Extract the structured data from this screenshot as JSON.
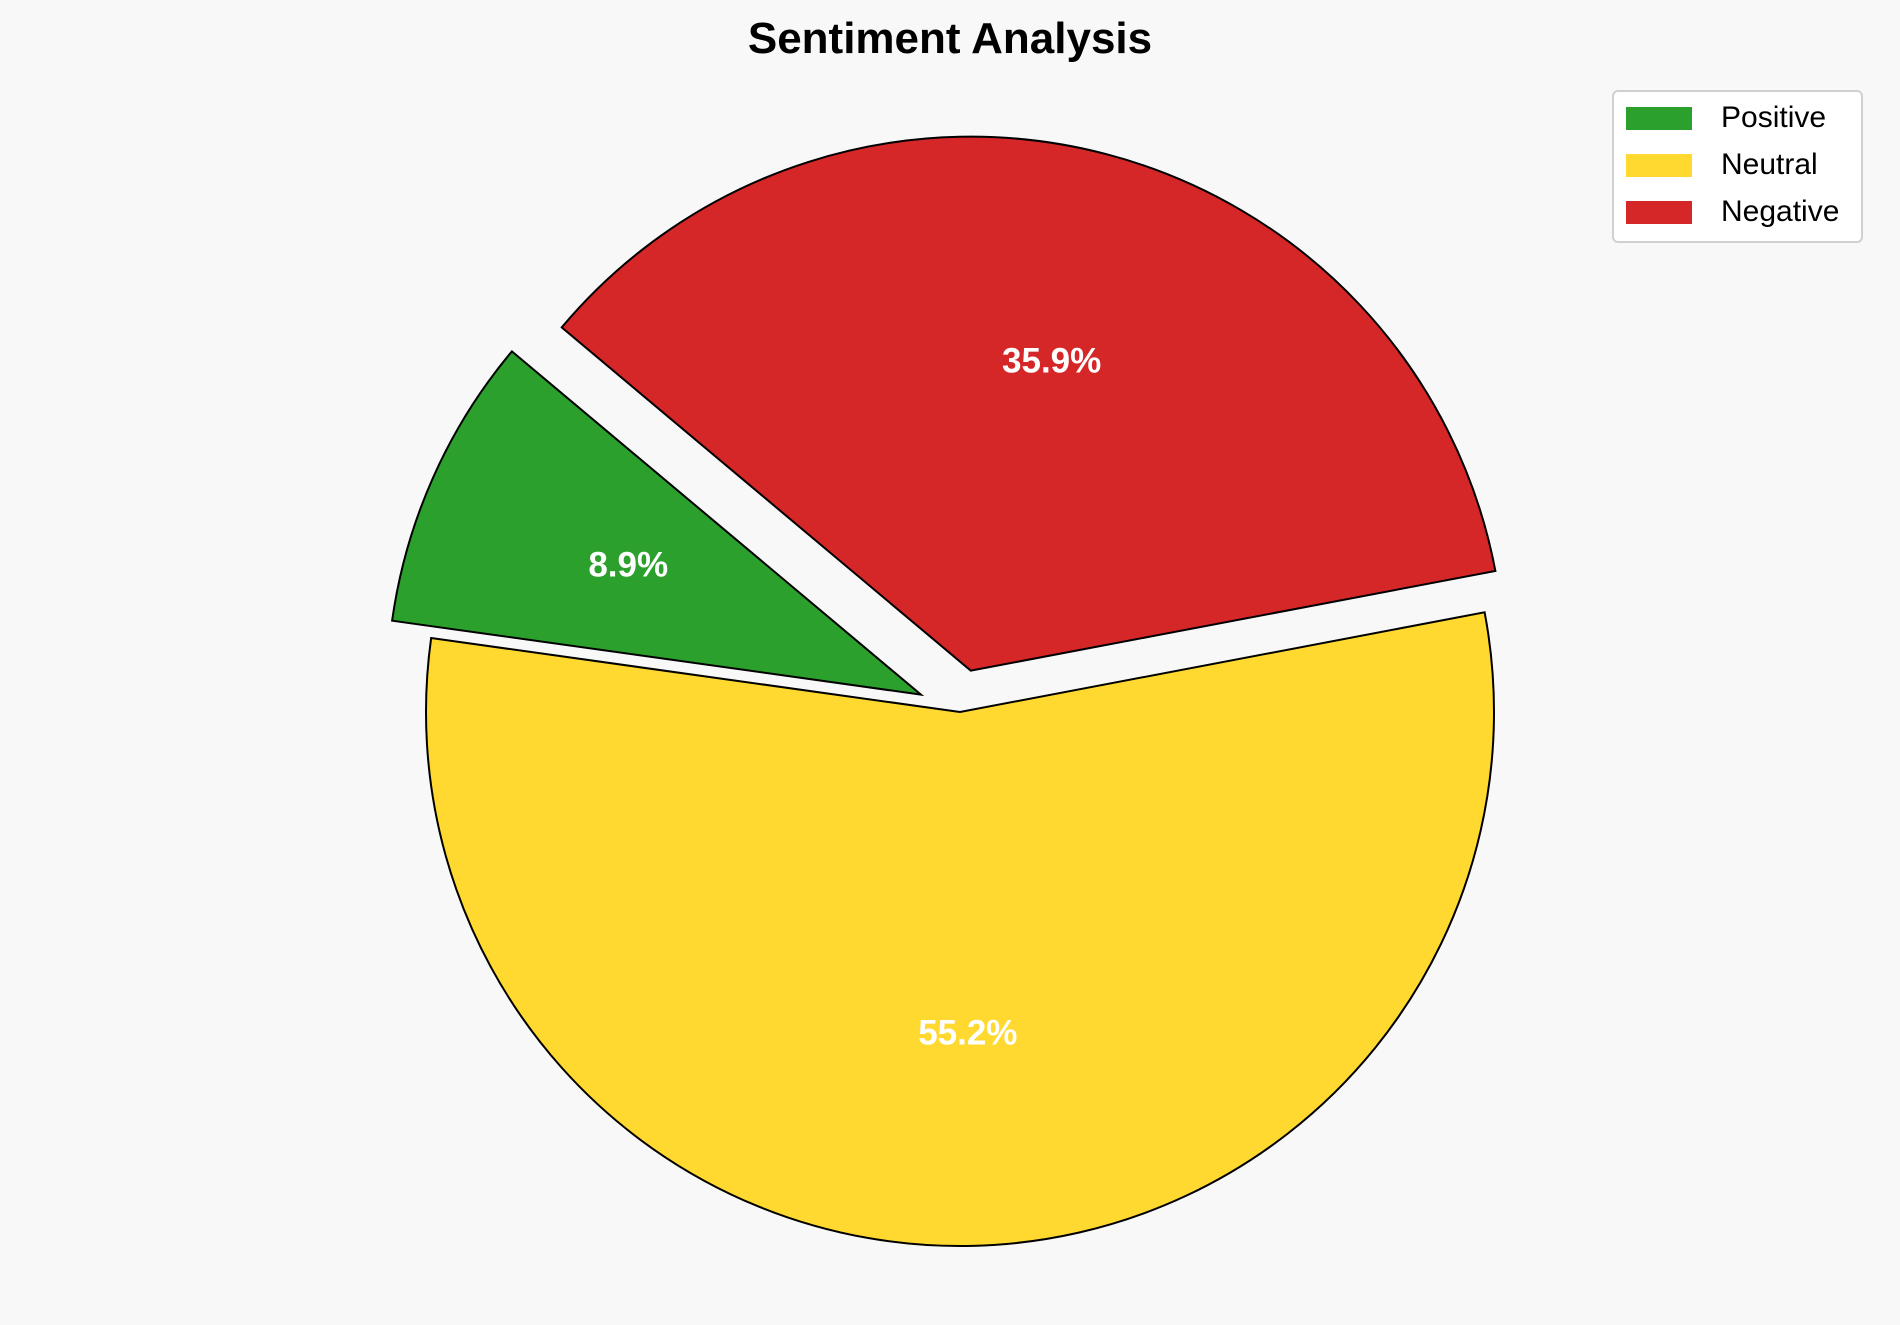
{
  "chart_data": {
    "type": "pie",
    "title": "Sentiment Analysis",
    "categories": [
      "Positive",
      "Neutral",
      "Negative"
    ],
    "values": [
      8.9,
      55.2,
      35.9
    ],
    "labels": [
      "8.9%",
      "55.2%",
      "35.9%"
    ],
    "colors": [
      "#2ca02c",
      "#ffd92f",
      "#d62728"
    ],
    "explode": [
      0.08,
      0,
      0.08
    ],
    "start_angle": 140,
    "direction": "counterclockwise",
    "edge_color": "#000000",
    "label_color": "#ffffff",
    "legend": {
      "placement": "top-right",
      "entries": [
        "Positive",
        "Neutral",
        "Negative"
      ]
    }
  }
}
